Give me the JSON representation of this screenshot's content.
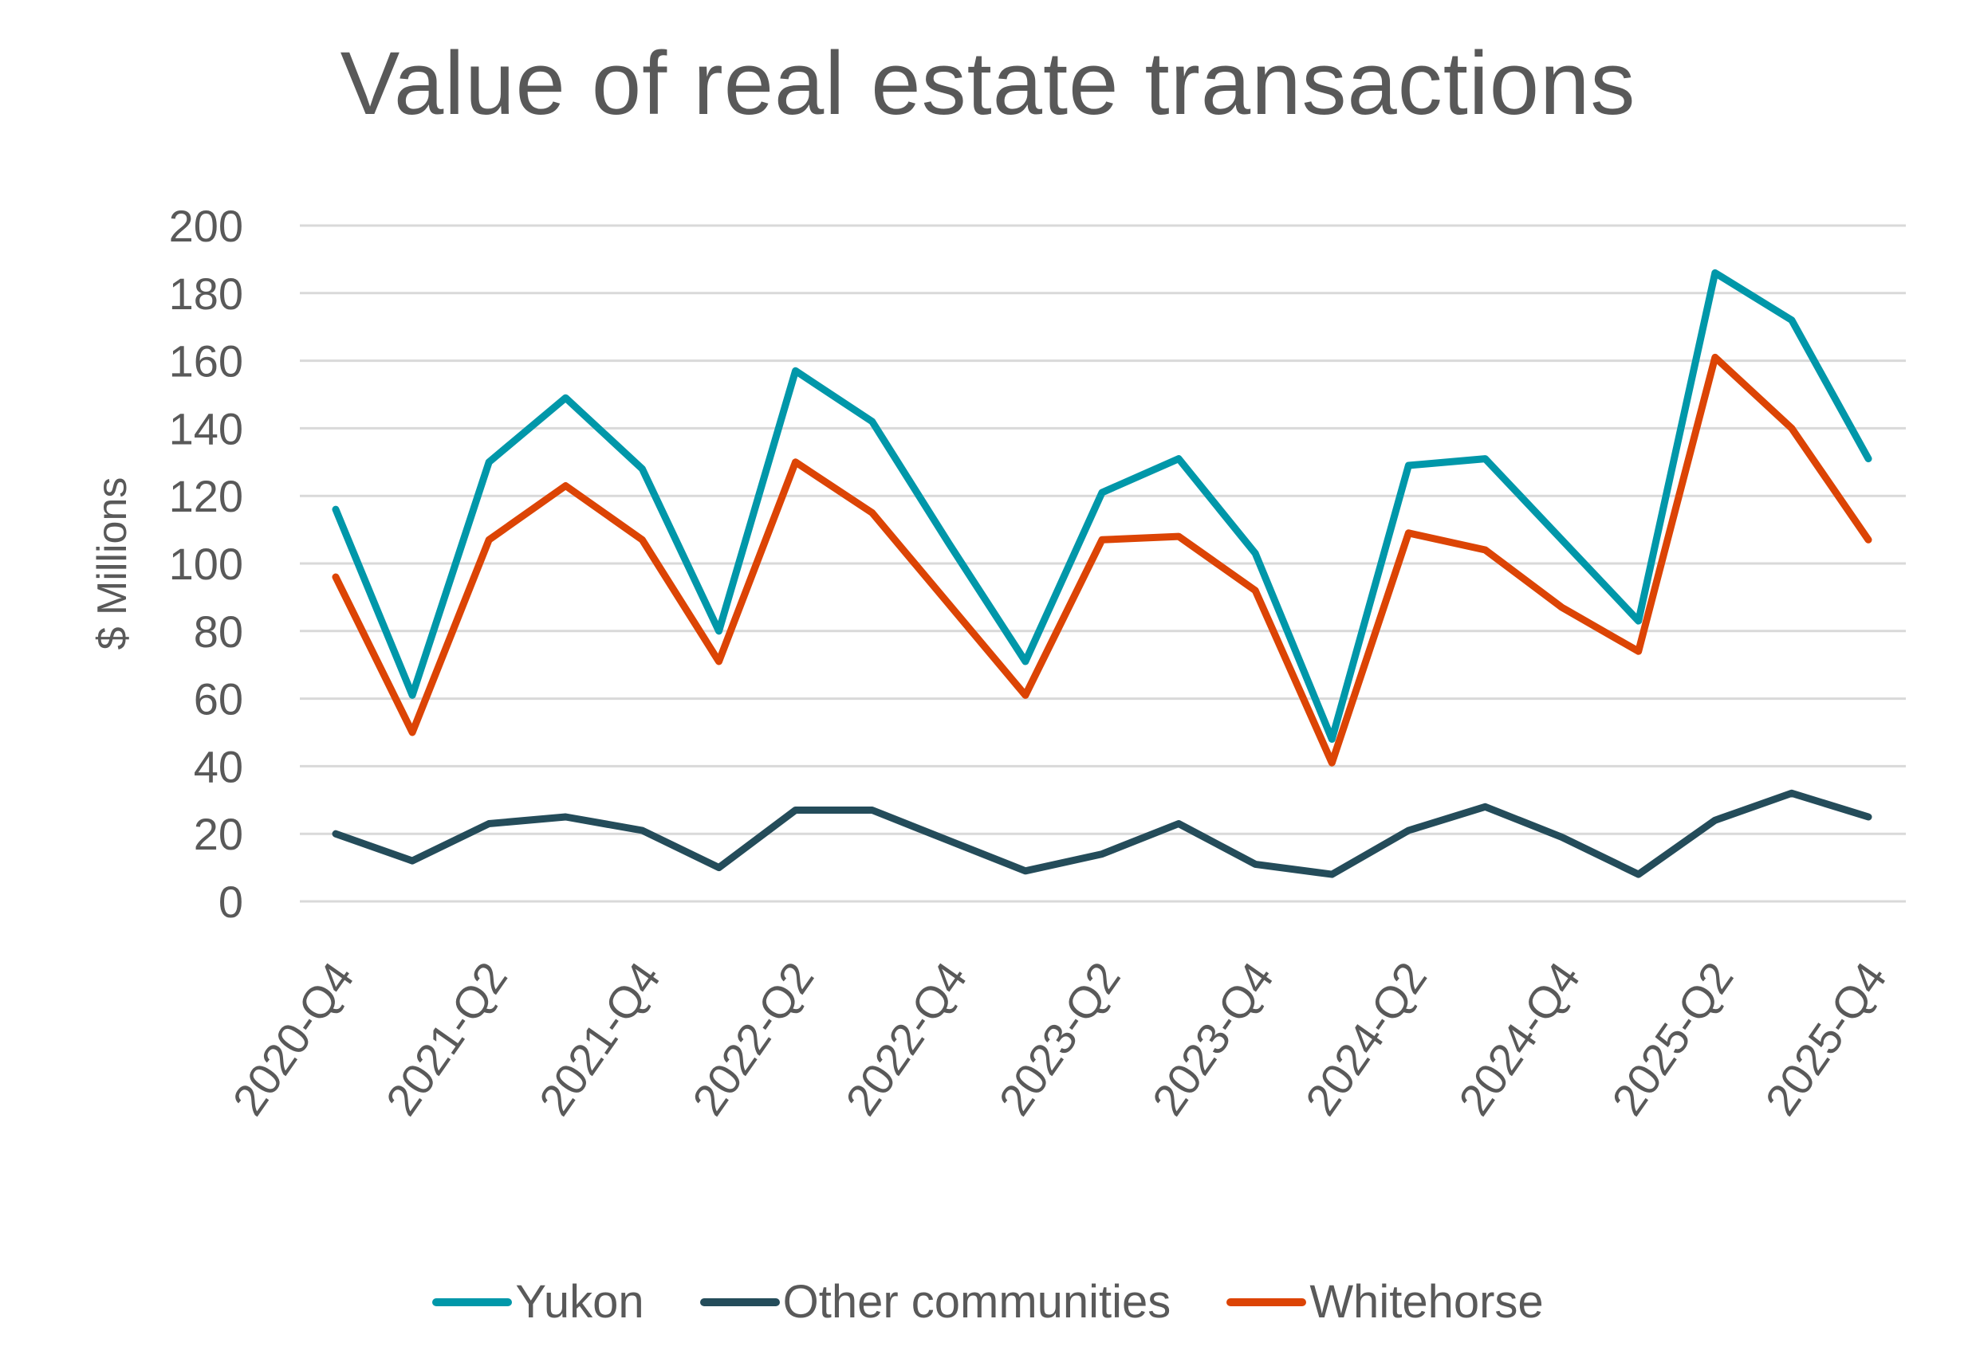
{
  "chart_data": {
    "type": "line",
    "title": "Value of real estate transactions",
    "xlabel": "",
    "ylabel": "$ Millions",
    "ylim": [
      0,
      200
    ],
    "yticks": [
      0,
      20,
      40,
      60,
      80,
      100,
      120,
      140,
      160,
      180,
      200
    ],
    "grid": true,
    "legend_position": "bottom",
    "x": [
      "2020-Q4",
      "2021-Q1",
      "2021-Q2",
      "2021-Q3",
      "2021-Q4",
      "2022-Q1",
      "2022-Q2",
      "2022-Q3",
      "2022-Q4",
      "2023-Q1",
      "2023-Q2",
      "2023-Q3",
      "2023-Q4",
      "2024-Q1",
      "2024-Q2",
      "2024-Q3",
      "2024-Q4",
      "2025-Q1",
      "2025-Q2",
      "2025-Q3",
      "2025-Q4"
    ],
    "xtick_labels": [
      "2020-Q4",
      "2021-Q2",
      "2021-Q4",
      "2022-Q2",
      "2022-Q4",
      "2023-Q2",
      "2023-Q4",
      "2024-Q2",
      "2024-Q4",
      "2025-Q2",
      "2025-Q4"
    ],
    "series": [
      {
        "name": "Yukon",
        "color": "#0097A9",
        "values": [
          116,
          61,
          130,
          149,
          128,
          80,
          157,
          142,
          106,
          71,
          121,
          131,
          103,
          48,
          129,
          131,
          107,
          83,
          186,
          172,
          131
        ]
      },
      {
        "name": "Other communities",
        "color": "#244C5A",
        "values": [
          20,
          12,
          23,
          25,
          21,
          10,
          27,
          27,
          18,
          9,
          14,
          23,
          11,
          8,
          21,
          28,
          19,
          8,
          24,
          32,
          25
        ]
      },
      {
        "name": "Whitehorse",
        "color": "#DC4405",
        "values": [
          96,
          50,
          107,
          123,
          107,
          71,
          130,
          115,
          88,
          61,
          107,
          108,
          92,
          41,
          109,
          104,
          87,
          74,
          161,
          140,
          107
        ]
      }
    ]
  },
  "legend": {
    "items": [
      {
        "label": "Yukon",
        "color": "#0097A9"
      },
      {
        "label": "Other communities",
        "color": "#244C5A"
      },
      {
        "label": "Whitehorse",
        "color": "#DC4405"
      }
    ]
  }
}
